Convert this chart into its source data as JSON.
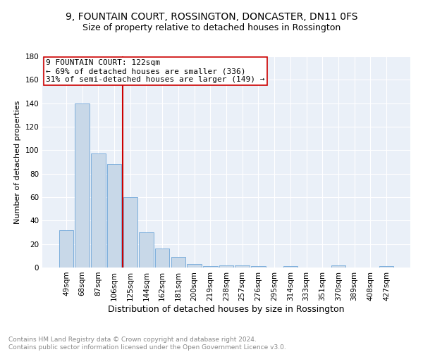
{
  "title": "9, FOUNTAIN COURT, ROSSINGTON, DONCASTER, DN11 0FS",
  "subtitle": "Size of property relative to detached houses in Rossington",
  "xlabel": "Distribution of detached houses by size in Rossington",
  "ylabel": "Number of detached properties",
  "categories": [
    "49sqm",
    "68sqm",
    "87sqm",
    "106sqm",
    "125sqm",
    "144sqm",
    "162sqm",
    "181sqm",
    "200sqm",
    "219sqm",
    "238sqm",
    "257sqm",
    "276sqm",
    "295sqm",
    "314sqm",
    "333sqm",
    "351sqm",
    "370sqm",
    "389sqm",
    "408sqm",
    "427sqm"
  ],
  "values": [
    32,
    140,
    97,
    88,
    60,
    30,
    16,
    9,
    3,
    1,
    2,
    2,
    1,
    0,
    1,
    0,
    0,
    2,
    0,
    0,
    1
  ],
  "bar_color": "#c8d8e8",
  "bar_edge_color": "#5b9bd5",
  "property_label": "9 FOUNTAIN COURT: 122sqm",
  "annotation_line1": "← 69% of detached houses are smaller (336)",
  "annotation_line2": "31% of semi-detached houses are larger (149) →",
  "vline_color": "#cc0000",
  "box_color": "#cc0000",
  "ylim": [
    0,
    180
  ],
  "yticks": [
    0,
    20,
    40,
    60,
    80,
    100,
    120,
    140,
    160,
    180
  ],
  "background_color": "#eaf0f8",
  "footer_line1": "Contains HM Land Registry data © Crown copyright and database right 2024.",
  "footer_line2": "Contains public sector information licensed under the Open Government Licence v3.0.",
  "title_fontsize": 10,
  "subtitle_fontsize": 9,
  "xlabel_fontsize": 9,
  "ylabel_fontsize": 8,
  "tick_fontsize": 7.5,
  "footer_fontsize": 6.5,
  "annotation_fontsize": 8
}
